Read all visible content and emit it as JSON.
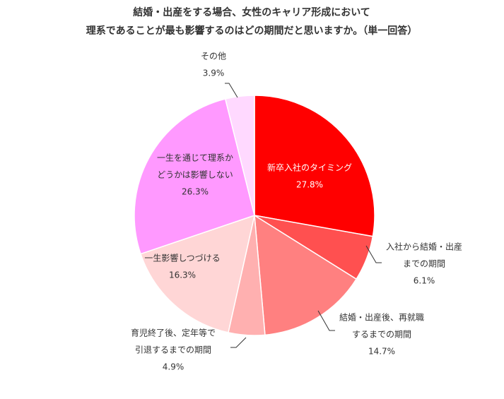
{
  "chart_data": {
    "type": "pie",
    "title_lines": [
      "結婚・出産をする場合、女性のキャリア形成において",
      "理系であることが最も影響するのはどの期間だと思いますか。（単一回答）"
    ],
    "slices": [
      {
        "label_lines": [
          "新卒入社のタイミング"
        ],
        "value_text": "27.8%",
        "value": 27.8,
        "color": "#ff0000"
      },
      {
        "label_lines": [
          "入社から結婚・出産",
          "までの期間"
        ],
        "value_text": "6.1%",
        "value": 6.1,
        "color": "#ff5050"
      },
      {
        "label_lines": [
          "結婚・出産後、再就職",
          "するまでの期間"
        ],
        "value_text": "14.7%",
        "value": 14.7,
        "color": "#ff8080"
      },
      {
        "label_lines": [
          "育児終了後、定年等で",
          "引退するまでの期間"
        ],
        "value_text": "4.9%",
        "value": 4.9,
        "color": "#ffb0b0"
      },
      {
        "label_lines": [
          "一生影響しつづける"
        ],
        "value_text": "16.3%",
        "value": 16.3,
        "color": "#ffd6d6"
      },
      {
        "label_lines": [
          "一生を通じて理系か",
          "どうかは影響しない"
        ],
        "value_text": "26.3%",
        "value": 26.3,
        "color": "#ff99ff"
      },
      {
        "label_lines": [
          "その他"
        ],
        "value_text": "3.9%",
        "value": 3.9,
        "color": "#ffd9ff"
      }
    ]
  }
}
